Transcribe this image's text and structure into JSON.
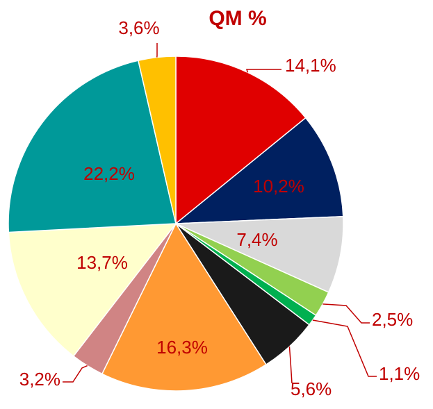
{
  "chart_data": {
    "type": "pie",
    "title": "QM %",
    "values": [
      14.1,
      10.2,
      7.4,
      2.5,
      1.1,
      5.6,
      16.3,
      3.2,
      13.7,
      22.2,
      3.6
    ],
    "value_labels": [
      "14,1%",
      "10,2%",
      "7,4%",
      "2,5%",
      "1,1%",
      "5,6%",
      "16,3%",
      "3,2%",
      "13,7%",
      "22,2%",
      "3,6%"
    ],
    "colors": [
      "#e00000",
      "#002060",
      "#d9d9d9",
      "#92d050",
      "#00b050",
      "#1a1a1a",
      "#ff9933",
      "#d08484",
      "#ffffcc",
      "#009999",
      "#ffc000"
    ],
    "label_color": "#c00000"
  }
}
